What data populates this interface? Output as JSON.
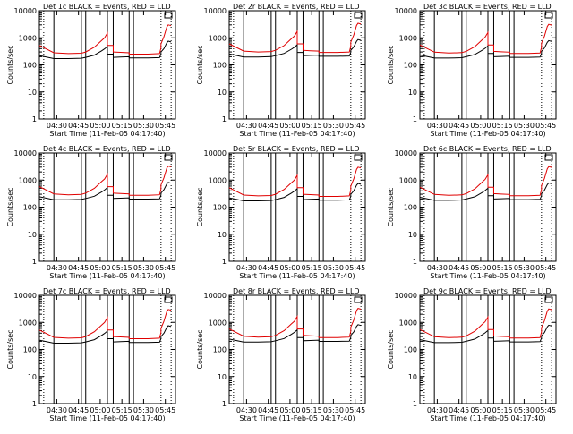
{
  "chart_data": {
    "type": "line",
    "grid": [
      3,
      3
    ],
    "panels": [
      {
        "title": "Det 1c BLACK = Events, RED = LLD",
        "det": 1
      },
      {
        "title": "Det 2r BLACK = Events, RED = LLD",
        "det": 2
      },
      {
        "title": "Det 3c BLACK = Events, RED = LLD",
        "det": 3
      },
      {
        "title": "Det 4c BLACK = Events, RED = LLD",
        "det": 4
      },
      {
        "title": "Det 5r BLACK = Events, RED = LLD",
        "det": 5
      },
      {
        "title": "Det 6c BLACK = Events, RED = LLD",
        "det": 6
      },
      {
        "title": "Det 7c BLACK = Events, RED = LLD",
        "det": 7
      },
      {
        "title": "Det 8r BLACK = Events, RED = LLD",
        "det": 8
      },
      {
        "title": "Det 9c BLACK = Events, RED = LLD",
        "det": 9
      }
    ],
    "ylabel": "Counts/sec",
    "xlabel": "Start Time (11-Feb-05 04:17:40)",
    "yscale": "log",
    "ylim": [
      1,
      10000
    ],
    "yticks": [
      "1",
      "10",
      "100",
      "1000",
      "10000"
    ],
    "xlim_min": [
      0,
      94
    ],
    "xtick_min": [
      12,
      27,
      42,
      57,
      72,
      87
    ],
    "xtick_labels": [
      "04:30",
      "04:45",
      "05:00",
      "05:15",
      "05:30",
      "05:45"
    ],
    "solid_marker_min": [
      10,
      29,
      32,
      47,
      51,
      62,
      65
    ],
    "dotted_marker_min": [
      3,
      84,
      91
    ],
    "x_min": [
      0,
      10,
      10,
      20,
      29,
      29,
      32,
      32,
      38,
      43,
      45,
      47,
      47,
      51,
      51,
      56,
      62,
      62,
      65,
      65,
      75,
      83,
      84,
      84,
      86,
      88,
      89,
      91
    ],
    "series": [
      {
        "name": "Events",
        "color": "#000000",
        "values": [
          220,
          170,
          170,
          170,
          175,
          175,
          190,
          190,
          230,
          330,
          390,
          480,
          250,
          250,
          190,
          195,
          200,
          180,
          180,
          180,
          180,
          185,
          250,
          300,
          400,
          650,
          750,
          700
        ]
      },
      {
        "name": "LLD",
        "color": "#e00000",
        "values": [
          520,
          280,
          280,
          260,
          270,
          270,
          300,
          300,
          450,
          800,
          1000,
          1500,
          520,
          520,
          300,
          290,
          280,
          250,
          250,
          250,
          250,
          260,
          420,
          600,
          1100,
          2500,
          3000,
          2800
        ]
      }
    ]
  }
}
